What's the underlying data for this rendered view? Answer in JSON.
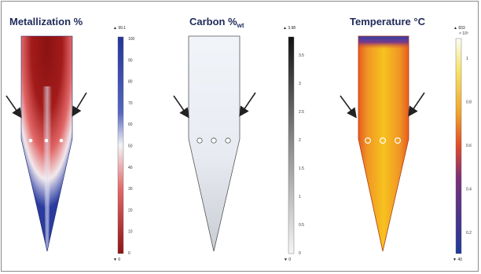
{
  "colors": {
    "frame": "#8a8a8a",
    "metal_high": "#27359b",
    "metal_low": "#8e1a1a",
    "metal_mid": "#f2f2f5",
    "carbon_fill": "#eef1f6",
    "temp_hot": "#f4b81c",
    "temp_warm": "#e8641e",
    "temp_cool": "#2a3aa0",
    "arrow": "#222222",
    "title": "#1f2a5a"
  },
  "panels": [
    {
      "title": "Metallization %",
      "max_label": "▲ 99.1",
      "min_label": "▼ 0",
      "colorbar_ticks": [
        "100",
        "90",
        "80",
        "70",
        "60",
        "50",
        "40",
        "30",
        "20",
        "10",
        "0"
      ]
    },
    {
      "title": "Carbon %",
      "title_sub": "wt",
      "max_label": "▲ 3.98",
      "min_label": "▼ 0",
      "colorbar_ticks": [
        "3.5",
        "3",
        "2.5",
        "2",
        "1.5",
        "1",
        "0.5",
        "0"
      ]
    },
    {
      "title": "Temperature °C",
      "max_label": "▲ 833",
      "min_label": "▼ 40",
      "exponent": "× 10³",
      "colorbar_ticks": [
        "1",
        "0.8",
        "0.6",
        "0.4",
        "0.2"
      ]
    }
  ],
  "icons": {
    "inlet_arrow": "arrow",
    "gas_port": "circle"
  }
}
